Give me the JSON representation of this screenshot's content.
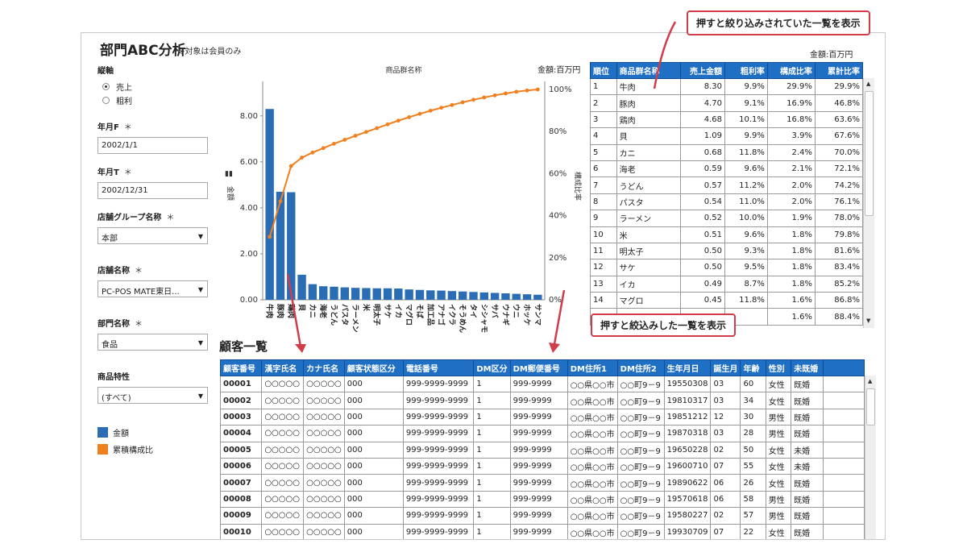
{
  "header": {
    "title": "部門ABC分析",
    "subtitle": "※対象は会員のみ"
  },
  "sidebar": {
    "axis_label": "縦軸",
    "radio_options": [
      {
        "label": "売上",
        "selected": true
      },
      {
        "label": "粗利",
        "selected": false
      }
    ],
    "fields": [
      {
        "label": "年月F",
        "required": "＊",
        "value": "2002/1/1",
        "type": "text"
      },
      {
        "label": "年月T",
        "required": "＊",
        "value": "2002/12/31",
        "type": "text"
      },
      {
        "label": "店舗グループ名称",
        "required": "＊",
        "value": "本部",
        "type": "select"
      },
      {
        "label": "店舗名称",
        "required": "＊",
        "value": "PC-POS MATE東日...",
        "type": "select"
      },
      {
        "label": "部門名称",
        "required": "＊",
        "value": "食品",
        "type": "select"
      },
      {
        "label": "商品特性",
        "required": "",
        "value": "(すべて)",
        "type": "select"
      }
    ],
    "legend": [
      {
        "label": "金額",
        "color": "#2a6db5"
      },
      {
        "label": "累積構成比",
        "color": "#f07f1d"
      }
    ]
  },
  "chart_data": {
    "type": "bar",
    "title": "商品群名称",
    "unit": "金額:百万円",
    "ylabel": "金額",
    "y2label": "構成比率",
    "ylim": [
      0,
      9.5
    ],
    "y2lim": [
      0,
      100
    ],
    "yticks": [
      "0.00",
      "2.00",
      "4.00",
      "6.00",
      "8.00"
    ],
    "y2ticks": [
      "0%",
      "20%",
      "40%",
      "60%",
      "80%",
      "100%"
    ],
    "categories": [
      "牛肉",
      "豚肉",
      "鶏肉",
      "貝",
      "カニ",
      "海老",
      "うどん",
      "パスタ",
      "ラーメン",
      "米",
      "明太子",
      "サケ",
      "イカ",
      "マグロ",
      "そば",
      "加工品",
      "アナゴ",
      "イクラ",
      "そうめん",
      "タイ",
      "シシャモ",
      "サバ",
      "ウナギ",
      "ウニ",
      "ホッケ",
      "サンマ"
    ],
    "series": [
      {
        "name": "金額",
        "color": "#2a6db5",
        "type": "bar",
        "values": [
          8.3,
          4.7,
          4.68,
          1.09,
          0.68,
          0.59,
          0.57,
          0.54,
          0.52,
          0.51,
          0.5,
          0.5,
          0.49,
          0.45,
          0.43,
          0.41,
          0.4,
          0.38,
          0.36,
          0.34,
          0.32,
          0.3,
          0.28,
          0.26,
          0.24,
          0.22
        ]
      },
      {
        "name": "累積構成比",
        "color": "#f07f1d",
        "type": "line",
        "values": [
          29.9,
          46.8,
          63.6,
          67.6,
          70.0,
          72.1,
          74.2,
          76.1,
          78.0,
          79.8,
          81.6,
          83.4,
          85.2,
          86.8,
          88.4,
          89.9,
          91.3,
          92.6,
          93.9,
          95.1,
          96.2,
          97.2,
          98.1,
          98.9,
          99.5,
          100.0
        ]
      }
    ]
  },
  "topTable": {
    "unit": "金額:百万円",
    "headers": [
      "順位",
      "商品群名称",
      "売上金額",
      "粗利率",
      "構成比率",
      "累計比率"
    ],
    "rows": [
      [
        "1",
        "牛肉",
        "8.30",
        "9.9%",
        "29.9%",
        "29.9%"
      ],
      [
        "2",
        "豚肉",
        "4.70",
        "9.1%",
        "16.9%",
        "46.8%"
      ],
      [
        "3",
        "鶏肉",
        "4.68",
        "10.1%",
        "16.8%",
        "63.6%"
      ],
      [
        "4",
        "貝",
        "1.09",
        "9.9%",
        "3.9%",
        "67.6%"
      ],
      [
        "5",
        "カニ",
        "0.68",
        "11.8%",
        "2.4%",
        "70.0%"
      ],
      [
        "6",
        "海老",
        "0.59",
        "9.6%",
        "2.1%",
        "72.1%"
      ],
      [
        "7",
        "うどん",
        "0.57",
        "11.2%",
        "2.0%",
        "74.2%"
      ],
      [
        "8",
        "パスタ",
        "0.54",
        "11.0%",
        "2.0%",
        "76.1%"
      ],
      [
        "9",
        "ラーメン",
        "0.52",
        "10.0%",
        "1.9%",
        "78.0%"
      ],
      [
        "10",
        "米",
        "0.51",
        "9.6%",
        "1.8%",
        "79.8%"
      ],
      [
        "11",
        "明太子",
        "0.50",
        "9.3%",
        "1.8%",
        "81.6%"
      ],
      [
        "12",
        "サケ",
        "0.50",
        "9.5%",
        "1.8%",
        "83.4%"
      ],
      [
        "13",
        "イカ",
        "0.49",
        "8.7%",
        "1.8%",
        "85.2%"
      ],
      [
        "14",
        "マグロ",
        "0.45",
        "11.8%",
        "1.6%",
        "86.8%"
      ],
      [
        "",
        "",
        "",
        "",
        "1.6%",
        "88.4%"
      ]
    ]
  },
  "customers": {
    "title": "顧客一覧",
    "headers": [
      "顧客番号",
      "漢字氏名",
      "カナ氏名",
      "顧客状態区分",
      "電話番号",
      "DM区分",
      "DM郵便番号",
      "DM住所1",
      "DM住所2",
      "生年月日",
      "誕生月",
      "年齢",
      "性別",
      "未既婚",
      ""
    ],
    "rows": [
      [
        "00001",
        "○○○○○",
        "○○○○○",
        "000",
        "999-9999-9999",
        "1",
        "999-9999",
        "○○県○○市",
        "○○町9－9",
        "19550308",
        "03",
        "60",
        "女性",
        "既婚"
      ],
      [
        "00002",
        "○○○○○",
        "○○○○○",
        "000",
        "999-9999-9999",
        "1",
        "999-9999",
        "○○県○○市",
        "○○町9－9",
        "19810317",
        "03",
        "34",
        "女性",
        "既婚"
      ],
      [
        "00003",
        "○○○○○",
        "○○○○○",
        "000",
        "999-9999-9999",
        "1",
        "999-9999",
        "○○県○○市",
        "○○町9－9",
        "19851212",
        "12",
        "30",
        "男性",
        "既婚"
      ],
      [
        "00004",
        "○○○○○",
        "○○○○○",
        "000",
        "999-9999-9999",
        "1",
        "999-9999",
        "○○県○○市",
        "○○町9－9",
        "19870318",
        "03",
        "28",
        "男性",
        "既婚"
      ],
      [
        "00005",
        "○○○○○",
        "○○○○○",
        "000",
        "999-9999-9999",
        "1",
        "999-9999",
        "○○県○○市",
        "○○町9－9",
        "19650228",
        "02",
        "50",
        "女性",
        "未婚"
      ],
      [
        "00006",
        "○○○○○",
        "○○○○○",
        "000",
        "999-9999-9999",
        "1",
        "999-9999",
        "○○県○○市",
        "○○町9－9",
        "19600710",
        "07",
        "55",
        "女性",
        "未婚"
      ],
      [
        "00007",
        "○○○○○",
        "○○○○○",
        "000",
        "999-9999-9999",
        "1",
        "999-9999",
        "○○県○○市",
        "○○町9－9",
        "19890622",
        "06",
        "26",
        "女性",
        "既婚"
      ],
      [
        "00008",
        "○○○○○",
        "○○○○○",
        "000",
        "999-9999-9999",
        "1",
        "999-9999",
        "○○県○○市",
        "○○町9－9",
        "19570618",
        "06",
        "58",
        "男性",
        "既婚"
      ],
      [
        "00009",
        "○○○○○",
        "○○○○○",
        "000",
        "999-9999-9999",
        "1",
        "999-9999",
        "○○県○○市",
        "○○町9－9",
        "19580227",
        "02",
        "57",
        "男性",
        "既婚"
      ],
      [
        "00010",
        "○○○○○",
        "○○○○○",
        "000",
        "999-9999-9999",
        "1",
        "999-9999",
        "○○県○○市",
        "○○町9－9",
        "19930709",
        "07",
        "22",
        "女性",
        "既婚"
      ]
    ]
  },
  "callouts": {
    "top": "押すと絞り込みされていた一覧を表示",
    "middle": "押すと絞込みした一覧を表示"
  }
}
